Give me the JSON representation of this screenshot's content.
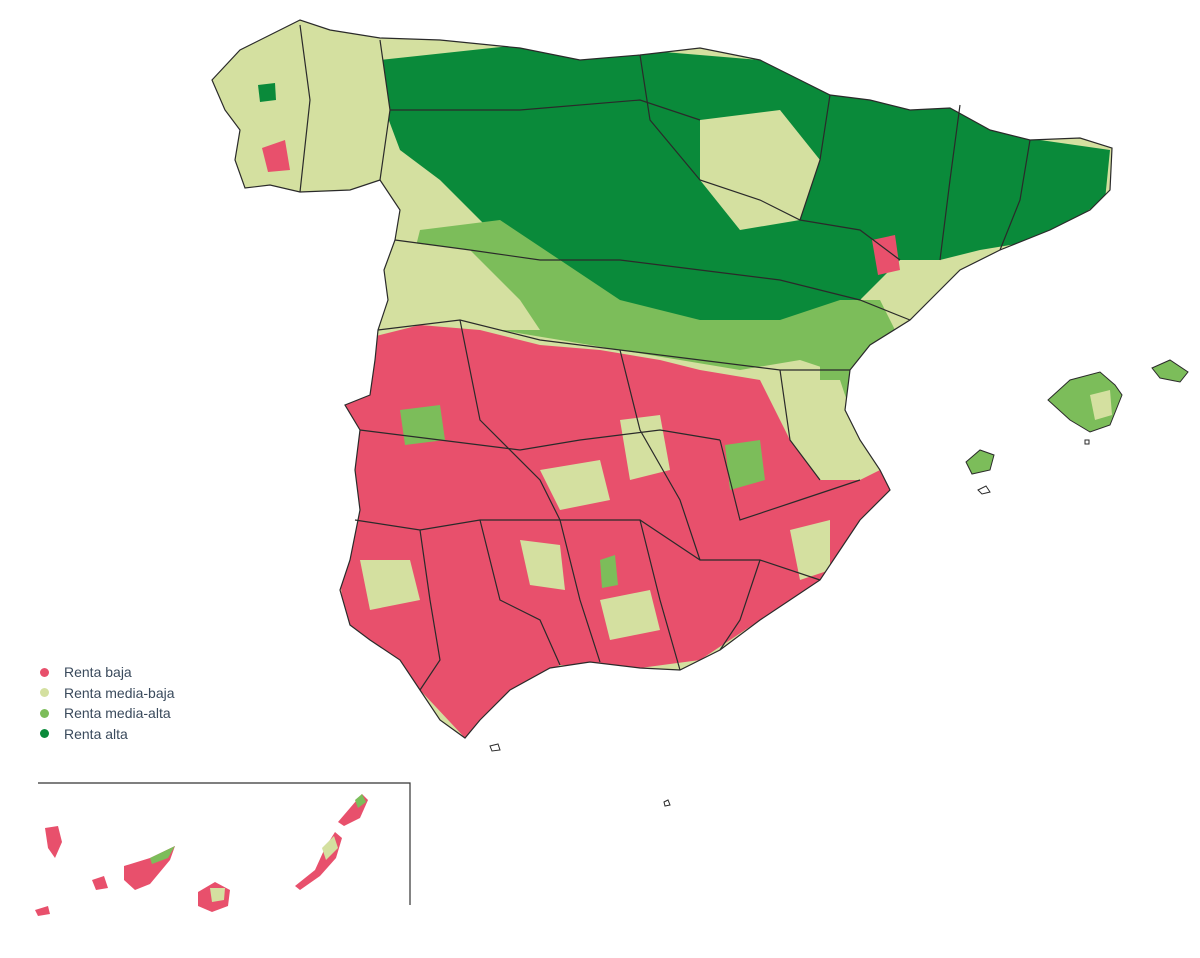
{
  "colors": {
    "renta_baja": "#e8506c",
    "renta_media_baja": "#d4e0a0",
    "renta_media_alta": "#7cbd5a",
    "renta_alta": "#0a8a3a",
    "border": "#2a2a2a"
  },
  "legend": {
    "items": [
      {
        "label": "Renta baja",
        "color": "#e8506c"
      },
      {
        "label": "Renta media-baja",
        "color": "#d4e0a0"
      },
      {
        "label": "Renta media-alta",
        "color": "#7cbd5a"
      },
      {
        "label": "Renta alta",
        "color": "#0a8a3a"
      }
    ]
  }
}
